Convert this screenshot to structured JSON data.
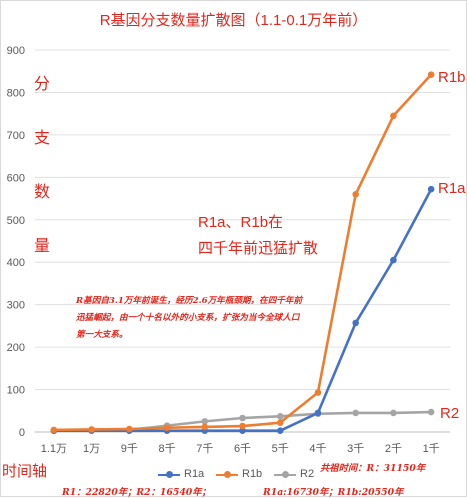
{
  "title": "R基因分支数量扩散图（1.1-0.1万年前）",
  "y_axis_label_chars": [
    "分",
    "支",
    "数",
    "量"
  ],
  "x_axis_name": "时间轴",
  "annotation_main": [
    "R1a、R1b在",
    "四千年前迅猛扩散"
  ],
  "annotation_note": "R基因自3.1万年前诞生，经历2.6万年瓶颈期，在四千年前迅猛崛起，由一个十名以外的小支系，扩张为当今全球人口第一大支系。",
  "stats": {
    "common_ancestor": "共祖时间：R：31150年",
    "r1_r2": "R1：22820年；R2：16540年；",
    "r1a_r1b": "R1a:16730年；R1b:20550年"
  },
  "colors": {
    "R1a": "#4472c4",
    "R1b": "#ed7d31",
    "R2": "#a5a5a5",
    "annotation": "#e3261b"
  },
  "chart_data": {
    "type": "line",
    "title": "R基因分支数量扩散图（1.1-0.1万年前）",
    "xlabel": "时间轴",
    "ylabel": "分支数量",
    "categories": [
      "1.1万",
      "1万",
      "9千",
      "8千",
      "7千",
      "6千",
      "5千",
      "4千",
      "3千",
      "2千",
      "1千"
    ],
    "ylim": [
      0,
      900
    ],
    "yticks": [
      0,
      100,
      200,
      300,
      400,
      500,
      600,
      700,
      800,
      900
    ],
    "grid": true,
    "legend_position": "bottom",
    "series": [
      {
        "name": "R1a",
        "values": [
          3,
          3,
          3,
          3,
          3,
          3,
          3,
          45,
          257,
          405,
          572
        ]
      },
      {
        "name": "R1b",
        "values": [
          5,
          6,
          7,
          10,
          12,
          14,
          22,
          93,
          560,
          745,
          842
        ]
      },
      {
        "name": "R2",
        "values": [
          3,
          5,
          5,
          15,
          25,
          33,
          37,
          43,
          45,
          45,
          47
        ]
      }
    ]
  }
}
